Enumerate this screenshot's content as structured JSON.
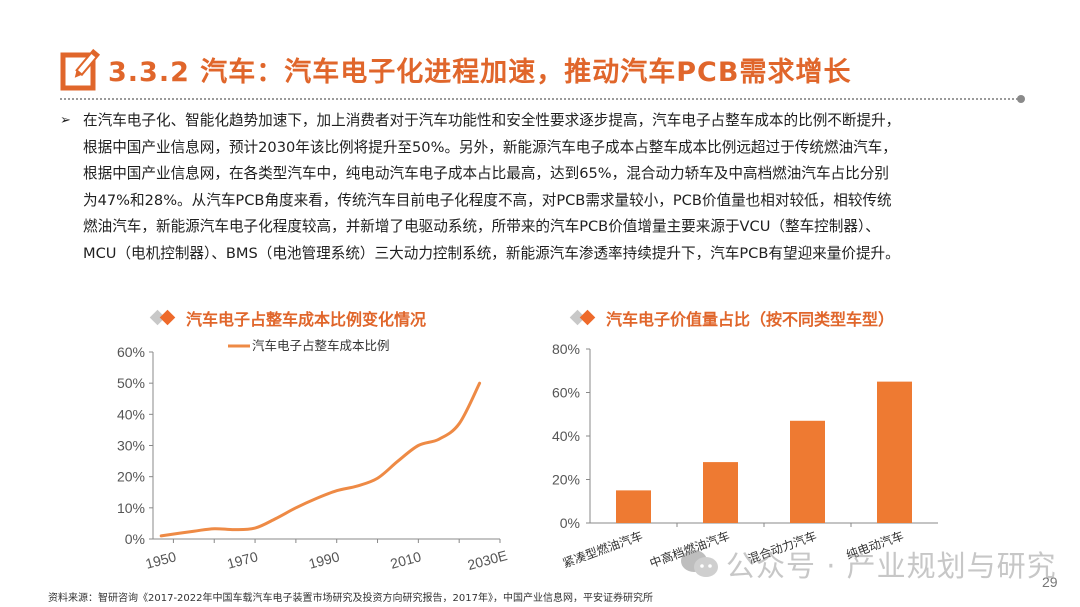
{
  "header": {
    "title": "3.3.2 汽车：汽车电子化进程加速，推动汽车PCB需求增长",
    "icon": "pencil-edit-icon"
  },
  "body": {
    "bullet": "➢",
    "lines": [
      "在汽车电子化、智能化趋势加速下，加上消费者对于汽车功能性和安全性要求逐步提高，汽车电子占整车成本的比例不断提升，",
      "根据中国产业信息网，预计2030年该比例将提升至50%。另外，新能源汽车电子成本占整车成本比例远超过于传统燃油汽车，",
      "根据中国产业信息网，在各类型汽车中，纯电动汽车电子成本占比最高，达到65%，混合动力轿车及中高档燃油汽车占比分别",
      "为47%和28%。从汽车PCB角度来看，传统汽车目前电子化程度不高，对PCB需求量较小，PCB价值量也相对较低，相较传统",
      "燃油汽车，新能源汽车电子化程度较高，并新增了电驱动系统，所带来的汽车PCB价值增量主要来源于VCU（整车控制器）、",
      "MCU（电机控制器）、BMS（电池管理系统）三大动力控制系统，新能源汽车渗透率持续提升下，汽车PCB有望迎来量价提升。"
    ]
  },
  "left_chart": {
    "heading": "汽车电子占整车成本比例变化情况",
    "legend": "汽车电子占整车成本比例"
  },
  "right_chart": {
    "heading": "汽车电子价值量占比（按不同类型车型）"
  },
  "chart_data": [
    {
      "type": "line",
      "title": "汽车电子占整车成本比例变化情况",
      "xlabel": "",
      "ylabel": "",
      "x_tick_labels": [
        "1950",
        "1970",
        "1990",
        "2010",
        "2030E"
      ],
      "y_tick_labels": [
        "0%",
        "10%",
        "20%",
        "30%",
        "40%",
        "50%",
        "60%"
      ],
      "ylim": [
        0,
        0.6
      ],
      "legend_position": "top",
      "grid": false,
      "series": [
        {
          "name": "汽车电子占整车成本比例",
          "color": "#ee8a45",
          "x": [
            1952,
            1960,
            1965,
            1970,
            1975,
            1980,
            1985,
            1990,
            1995,
            2000,
            2005,
            2010,
            2015,
            2020,
            2025,
            2030
          ],
          "values": [
            0.01,
            0.025,
            0.033,
            0.03,
            0.035,
            0.065,
            0.1,
            0.13,
            0.155,
            0.17,
            0.195,
            0.25,
            0.3,
            0.32,
            0.37,
            0.5
          ]
        }
      ]
    },
    {
      "type": "bar",
      "title": "汽车电子价值量占比（按不同类型车型）",
      "xlabel": "",
      "ylabel": "",
      "categories": [
        "紧凑型燃油汽车",
        "中高档燃油汽车",
        "混合动力汽车",
        "纯电动汽车"
      ],
      "values": [
        0.15,
        0.28,
        0.47,
        0.65
      ],
      "y_tick_labels": [
        "0%",
        "20%",
        "40%",
        "60%",
        "80%"
      ],
      "ylim": [
        0,
        0.8
      ],
      "bar_color": "#ee7a32",
      "grid": false
    }
  ],
  "footer": {
    "source": "资料来源：智研咨询《2017-2022年中国车载汽车电子装置市场研究及投资方向研究报告，2017年》，中国产业信息网，平安证券研究所",
    "page_number": "29",
    "watermark": "公众号 · 产业规划与研究"
  },
  "colors": {
    "accent": "#e0662b",
    "bar": "#ee7a32",
    "line": "#ee8a45",
    "axis": "#888888"
  }
}
